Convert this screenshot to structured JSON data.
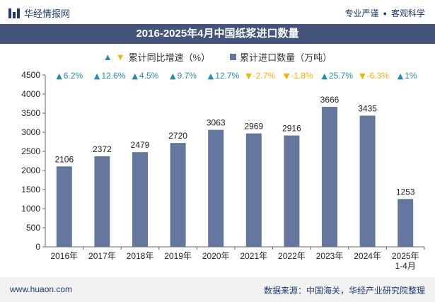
{
  "header": {
    "brand": "华经情报网",
    "tags": [
      "专业严谨",
      "客观科学"
    ]
  },
  "title": "2016-2025年4月中国纸浆进口数量",
  "legend": {
    "growth_label": "累计同比增速（%）",
    "volume_label": "累计进口数量（万吨）"
  },
  "colors": {
    "bar": "#66779f",
    "up": "#2a8ca7",
    "down": "#f1b400",
    "title_bg": "#44547a"
  },
  "chart_data": {
    "type": "bar",
    "categories": [
      "2016年",
      "2017年",
      "2018年",
      "2019年",
      "2020年",
      "2021年",
      "2022年",
      "2023年",
      "2024年",
      "2025年\n1-4月"
    ],
    "series": [
      {
        "name": "累计进口数量（万吨）",
        "values": [
          2106,
          2372,
          2479,
          2720,
          3063,
          2969,
          2916,
          3666,
          3435,
          1253
        ]
      },
      {
        "name": "累计同比增速（%）",
        "values": [
          6.2,
          12.6,
          4.5,
          9.7,
          12.7,
          -2.7,
          -1.8,
          25.7,
          -6.3,
          1
        ]
      }
    ],
    "growth_labels": [
      "6.2%",
      "12.6%",
      "4.5%",
      "9.7%",
      "12.7%",
      "-2.7%",
      "-1.8%",
      "25.7%",
      "-6.3%",
      "1%"
    ],
    "ylim": [
      0,
      4500
    ],
    "yticks": [
      0,
      500,
      1000,
      1500,
      2000,
      2500,
      3000,
      3500,
      4000,
      4500
    ]
  },
  "footer": {
    "url": "www.huaon.com",
    "source": "数据来源：中国海关，华经产业研究院整理"
  }
}
